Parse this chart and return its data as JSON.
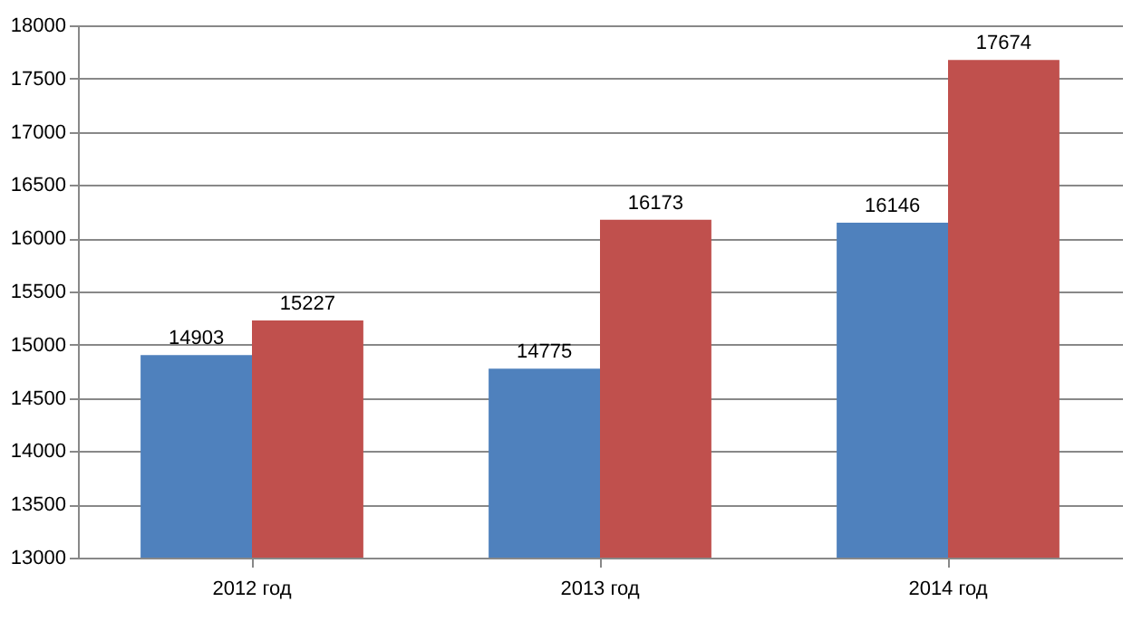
{
  "chart_data": {
    "type": "bar",
    "categories": [
      "2012 год",
      "2013 год",
      "2014 год"
    ],
    "series": [
      {
        "color": "#4f81bd",
        "values": [
          14903,
          14775,
          16146
        ]
      },
      {
        "color": "#c0504d",
        "values": [
          15227,
          16173,
          17674
        ]
      }
    ],
    "ylim": [
      13000,
      18000
    ],
    "yticks": [
      13000,
      13500,
      14000,
      14500,
      15000,
      15500,
      16000,
      16500,
      17000,
      17500,
      18000
    ],
    "grid": "y",
    "legend": false,
    "data_labels": true
  }
}
